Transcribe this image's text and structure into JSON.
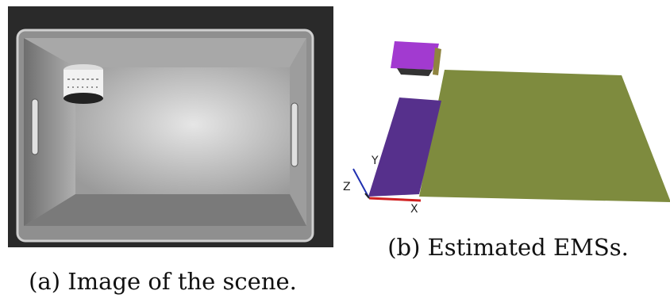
{
  "figure": {
    "panels": [
      {
        "caption": "(a) Image of the scene."
      },
      {
        "caption": "(b) Estimated EMSs.",
        "axes": {
          "x": "X",
          "y": "Y",
          "z": "Z"
        }
      }
    ]
  }
}
